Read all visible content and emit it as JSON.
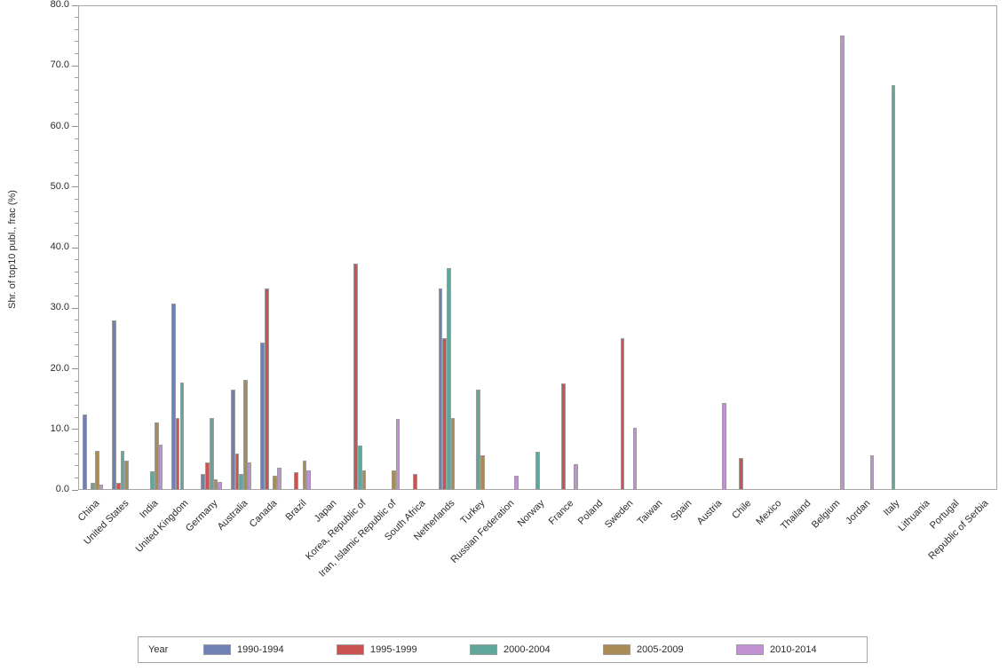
{
  "chart_data": {
    "type": "bar",
    "title": "",
    "xlabel": "",
    "ylabel": "Shr. of top10 publ., frac (%)",
    "ylim": [
      0,
      80
    ],
    "ytick_step": 10,
    "ytick_minor_step": 2,
    "ytick_labels": [
      "0.0",
      "10.0",
      "20.0",
      "30.0",
      "40.0",
      "50.0",
      "60.0",
      "70.0",
      "80.0"
    ],
    "grid": false,
    "legend_title": "Year",
    "legend_position": "bottom",
    "categories": [
      "China",
      "United States",
      "India",
      "United Kingdom",
      "Germany",
      "Australia",
      "Canada",
      "Brazil",
      "Japan",
      "Korea, Republic of",
      "Iran, Islamic Republic of",
      "South Africa",
      "Netherlands",
      "Turkey",
      "Russian Federation",
      "Norway",
      "France",
      "Poland",
      "Sweden",
      "Taiwan",
      "Spain",
      "Austria",
      "Chile",
      "Mexico",
      "Thailand",
      "Belgium",
      "Jordan",
      "Italy",
      "Lithuania",
      "Portugal",
      "Republic of Serbia"
    ],
    "series": [
      {
        "name": "1990-1994",
        "color": "#6e80b4",
        "values": [
          12.4,
          28.0,
          0,
          30.7,
          2.6,
          16.5,
          24.3,
          0,
          0,
          0,
          0,
          0,
          33.3,
          0,
          0,
          0,
          0,
          0,
          0,
          0,
          0,
          0,
          0,
          0,
          0,
          0,
          0,
          0,
          0,
          0,
          0
        ]
      },
      {
        "name": "1995-1999",
        "color": "#ca5250",
        "values": [
          0,
          1.1,
          0,
          11.9,
          4.6,
          6.0,
          33.3,
          2.9,
          0,
          37.4,
          0,
          2.7,
          25.0,
          0,
          0,
          0,
          17.6,
          0,
          25.0,
          0,
          0,
          0,
          5.3,
          0,
          0,
          0,
          0,
          0,
          0,
          0,
          0
        ]
      },
      {
        "name": "2000-2004",
        "color": "#5fa69b",
        "values": [
          1.2,
          6.4,
          3.1,
          17.7,
          11.8,
          2.6,
          0,
          0,
          0,
          7.3,
          0,
          0,
          36.6,
          16.5,
          0,
          6.3,
          0,
          0,
          0,
          0,
          0,
          0,
          0,
          0,
          0,
          0,
          0,
          66.8,
          0,
          0,
          0
        ]
      },
      {
        "name": "2005-2009",
        "color": "#a98b55",
        "values": [
          6.5,
          4.9,
          11.1,
          0,
          1.7,
          18.2,
          2.4,
          4.9,
          0,
          3.2,
          3.2,
          0,
          11.9,
          5.7,
          0,
          0,
          0,
          0,
          0,
          0,
          0,
          0,
          0,
          0,
          0,
          0,
          0,
          0,
          0,
          0,
          0
        ]
      },
      {
        "name": "2010-2014",
        "color": "#c191d3",
        "values": [
          0.9,
          0,
          7.4,
          0,
          1.3,
          4.6,
          3.6,
          3.2,
          0,
          0,
          11.7,
          0,
          0,
          0,
          2.3,
          0,
          4.3,
          0,
          10.3,
          0,
          0,
          14.3,
          0,
          0,
          0,
          75.0,
          5.7,
          0,
          0,
          0,
          0
        ]
      }
    ]
  }
}
